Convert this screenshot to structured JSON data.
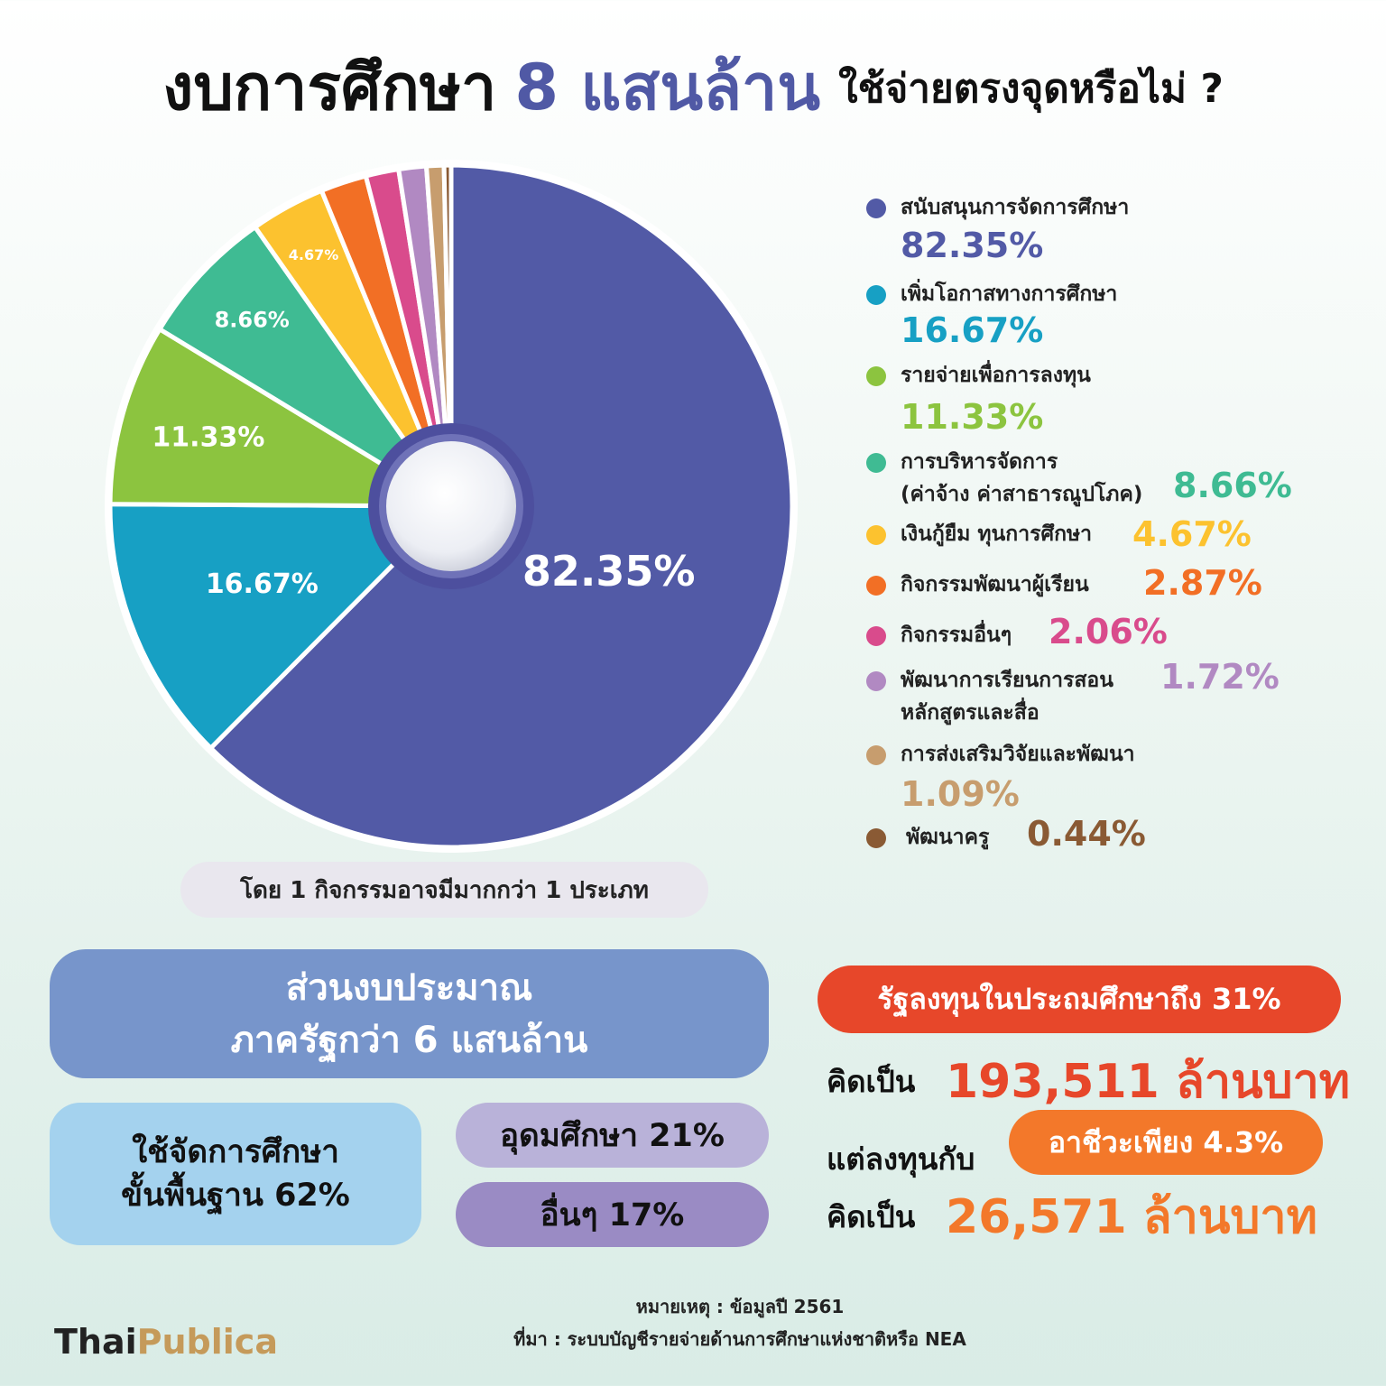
{
  "title": {
    "part1": "งบการศึกษา",
    "part2": "8 แสนล้าน",
    "part3": "ใช้จ่ายตรงจุดหรือไม่ ?"
  },
  "chart_data": {
    "type": "pie",
    "categories": [
      "สนับสนุนการจัดการศึกษา",
      "เพิ่มโอกาสทางการศึกษา",
      "รายจ่ายเพื่อการลงทุน",
      "การบริหารจัดการ (ค่าจ้าง ค่าสาธารณูปโภค)",
      "เงินกู้ยืม ทุนการศึกษา",
      "กิจกรรมพัฒนาผู้เรียน",
      "กิจกรรมอื่นๆ",
      "พัฒนาการเรียนการสอน หลักสูตรและสื่อ",
      "การส่งเสริมวิจัยและพัฒนา",
      "พัฒนาครู"
    ],
    "values": [
      82.35,
      16.67,
      11.33,
      8.66,
      4.67,
      2.87,
      2.06,
      1.72,
      1.09,
      0.44
    ],
    "colors": [
      "#525aa6",
      "#17a0c4",
      "#8cc43f",
      "#3fbb93",
      "#fcc22f",
      "#f26f25",
      "#d94b8c",
      "#b189c2",
      "#c79d6e",
      "#8a5a34"
    ],
    "slice_labels": [
      "82.35%",
      "16.67%",
      "11.33%",
      "8.66%",
      "4.67%",
      "",
      "",
      "",
      "",
      ""
    ]
  },
  "legend": [
    {
      "label": "สนับสนุนการจัดการศึกษา",
      "value": "82.35%",
      "color": "#525aa6"
    },
    {
      "label": "เพิ่มโอกาสทางการศึกษา",
      "value": "16.67%",
      "color": "#17a0c4"
    },
    {
      "label": "รายจ่ายเพื่อการลงทุน",
      "value": "11.33%",
      "color": "#8cc43f"
    },
    {
      "label": "การบริหารจัดการ",
      "label2": "(ค่าจ้าง ค่าสาธารณูปโภค)",
      "value": "8.66%",
      "color": "#3fbb93"
    },
    {
      "label": "เงินกู้ยืม ทุนการศึกษา",
      "value": "4.67%",
      "color": "#fcc22f"
    },
    {
      "label": "กิจกรรมพัฒนาผู้เรียน",
      "value": "2.87%",
      "color": "#f26f25"
    },
    {
      "label": "กิจกรรมอื่นๆ",
      "value": "2.06%",
      "color": "#d94b8c"
    },
    {
      "label": "พัฒนาการเรียนการสอน",
      "label2": "หลักสูตรและสื่อ",
      "value": "1.72%",
      "color": "#b189c2"
    },
    {
      "label": "การส่งเสริมวิจัยและพัฒนา",
      "value": "1.09%",
      "color": "#c79d6e"
    },
    {
      "label": "พัฒนาครู",
      "value": "0.44%",
      "color": "#8a5a34"
    }
  ],
  "note": "โดย 1 กิจกรรมอาจมีมากกว่า 1 ประเภท",
  "budget": {
    "line1": "ส่วนงบประมาณ",
    "line2": "ภาครัฐกว่า 6 แสนล้าน",
    "basic_line1": "ใช้จัดการศึกษา",
    "basic_line2": "ขั้นพื้นฐาน 62%",
    "higher": "อุดมศึกษา 21%",
    "other": "อื่นๆ 17%"
  },
  "investment": {
    "primary_pill": "รัฐลงทุนในประถมศึกษาถึง 31%",
    "kid_pen_1": "คิดเป็น",
    "primary_amount": "193,511 ล้านบาท",
    "but_invest": "แต่ลงทุนกับ",
    "voc_pill": "อาชีวะเพียง 4.3%",
    "kid_pen_2": "คิดเป็น",
    "voc_amount": "26,571 ล้านบาท"
  },
  "footer": {
    "remark": "หมายเหตุ : ข้อมูลปี 2561",
    "source": "ที่มา : ระบบบัญชีรายจ่ายด้านการศึกษาแห่งชาติหรือ NEA",
    "logo_a": "Thai",
    "logo_b": "Publica"
  }
}
